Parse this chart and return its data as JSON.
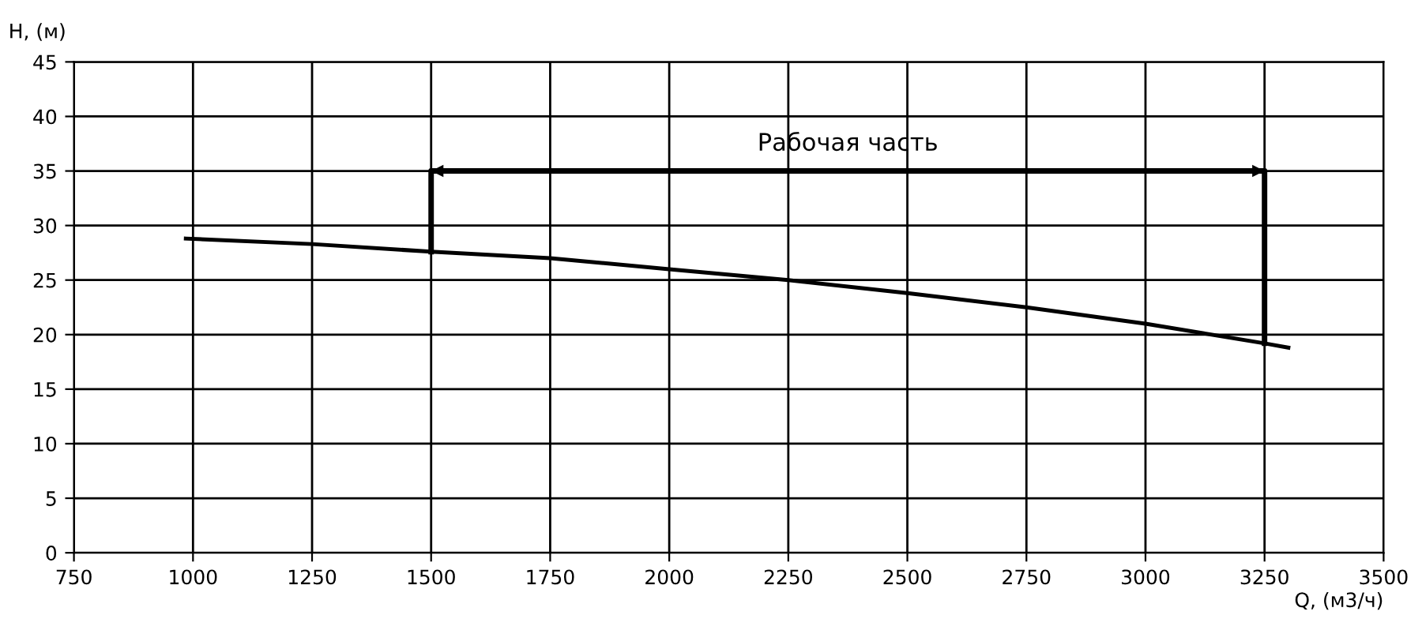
{
  "chart_data": {
    "type": "line",
    "xlabel": "Q, (м3/ч)",
    "ylabel": "H, (м)",
    "series": [
      {
        "color": "#000000",
        "x": [
          985,
          1250,
          1500,
          1750,
          2000,
          2250,
          2500,
          2750,
          3000,
          3250,
          3300
        ],
        "values": [
          28.8,
          28.3,
          27.6,
          27.0,
          26.0,
          25.0,
          23.8,
          22.5,
          21.0,
          19.2,
          18.8
        ]
      },
      {
        "color": "#000000",
        "x": [
          1500,
          1500,
          3250,
          3250
        ],
        "values": [
          27.6,
          35,
          35,
          19.2
        ]
      }
    ],
    "xlim": [
      750,
      3500
    ],
    "xticks": [
      750,
      1000,
      1250,
      1500,
      1750,
      2000,
      2250,
      2500,
      2750,
      3000,
      3250,
      3500
    ],
    "ylim": [
      0,
      45
    ],
    "yticks": [
      0,
      5,
      10,
      15,
      20,
      25,
      30,
      35,
      40,
      45
    ],
    "grid": true,
    "legend": false,
    "marker": "none",
    "line_style": "solid",
    "annotations": [
      "Рабочая часть"
    ]
  }
}
